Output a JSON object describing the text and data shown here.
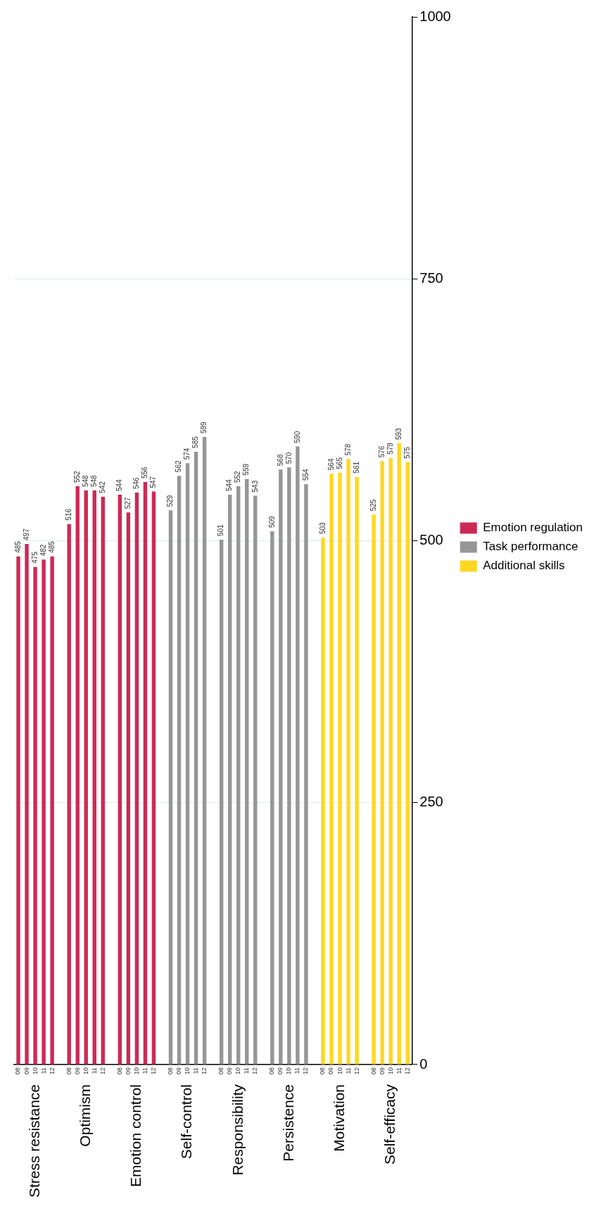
{
  "chart_data": {
    "type": "bar",
    "categories": [
      "08",
      "09",
      "10",
      "11",
      "12",
      null,
      "08",
      "09",
      "10",
      "11",
      "12",
      null,
      "08",
      "09",
      "10",
      "11",
      "12",
      null,
      "08",
      "09",
      "10",
      "11",
      "12",
      null,
      "08",
      "09",
      "10",
      "11",
      "12",
      null,
      "08",
      "09",
      "10",
      "11",
      "12",
      null,
      "08",
      "09",
      "10",
      "11",
      "12",
      null,
      "08",
      "09",
      "10",
      "11",
      "12"
    ],
    "series": [
      {
        "name": "Emotion regulation",
        "color": "#cc2a55",
        "values": [
          485,
          497,
          475,
          482,
          485,
          null,
          516,
          552,
          548,
          548,
          542,
          null,
          544,
          527,
          546,
          556,
          547,
          null,
          null,
          null,
          null,
          null,
          null,
          null,
          null,
          null,
          null,
          null,
          null,
          null,
          null,
          null,
          null,
          null,
          null,
          null,
          null,
          null,
          null,
          null,
          null,
          null,
          null,
          null,
          null,
          null,
          null
        ]
      },
      {
        "name": "Task performance",
        "color": "#969696",
        "values": [
          null,
          null,
          null,
          null,
          null,
          null,
          null,
          null,
          null,
          null,
          null,
          null,
          null,
          null,
          null,
          null,
          null,
          null,
          529,
          562,
          574,
          585,
          599,
          null,
          501,
          544,
          552,
          559,
          543,
          null,
          509,
          568,
          570,
          590,
          554,
          null,
          null,
          null,
          null,
          null,
          null,
          null,
          null,
          null,
          null,
          null,
          null
        ]
      },
      {
        "name": "Additional skills",
        "color": "#ffd723",
        "values": [
          null,
          null,
          null,
          null,
          null,
          null,
          null,
          null,
          null,
          null,
          null,
          null,
          null,
          null,
          null,
          null,
          null,
          null,
          null,
          null,
          null,
          null,
          null,
          null,
          null,
          null,
          null,
          null,
          null,
          null,
          null,
          null,
          null,
          null,
          null,
          null,
          503,
          564,
          565,
          578,
          561,
          null,
          525,
          576,
          579,
          593,
          575
        ]
      }
    ],
    "annotations": [
      "Stress resistance",
      "Optimism",
      "Emotion control",
      "Self-control",
      "Responsibility",
      "Persistence",
      "Motivation",
      "Self-efficacy"
    ],
    "ylim": [
      0,
      1000
    ],
    "yticks": [
      0,
      250,
      500,
      750,
      1000
    ],
    "grid": "y",
    "legend": "right",
    "data_labels": true
  }
}
